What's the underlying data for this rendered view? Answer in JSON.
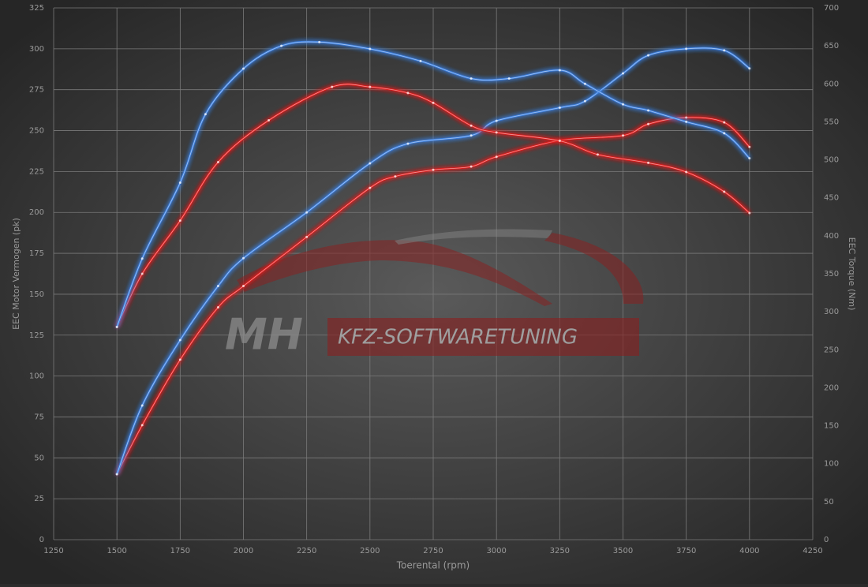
{
  "chart_data": {
    "type": "line",
    "xlabel": "Toerental (rpm)",
    "ylabel": "EEC Motor Vermogen (pk)",
    "y2label": "EEC Torque (Nm)",
    "watermark": {
      "left": "MH",
      "right": "KFZ-SOFTWARETUNING"
    },
    "xlim": [
      1250,
      4250
    ],
    "xticks": [
      1250,
      1500,
      1750,
      2000,
      2250,
      2500,
      2750,
      3000,
      3250,
      3500,
      3750,
      4000,
      4250
    ],
    "ylim": [
      0,
      325
    ],
    "yticks": [
      0,
      25,
      50,
      75,
      100,
      125,
      150,
      175,
      200,
      225,
      250,
      275,
      300,
      325
    ],
    "y2lim": [
      0,
      700
    ],
    "y2ticks": [
      0,
      50,
      100,
      150,
      200,
      250,
      300,
      350,
      400,
      450,
      500,
      550,
      600,
      650,
      700
    ],
    "grid": true,
    "series": [
      {
        "color": "#e01e1e",
        "axis": "y",
        "x": [
          1500,
          1600,
          1750,
          1900,
          2000,
          2250,
          2500,
          2600,
          2750,
          2900,
          3000,
          3250,
          3500,
          3600,
          3750,
          3900,
          4000
        ],
        "values": [
          40,
          70,
          110,
          142,
          155,
          185,
          215,
          222,
          226,
          228,
          234,
          244,
          247,
          254,
          258,
          255,
          240
        ]
      },
      {
        "color": "#3a7fe0",
        "axis": "y",
        "x": [
          1500,
          1600,
          1750,
          1900,
          2000,
          2250,
          2500,
          2650,
          2900,
          3000,
          3250,
          3350,
          3500,
          3600,
          3750,
          3900,
          4000
        ],
        "values": [
          40,
          82,
          122,
          155,
          172,
          200,
          230,
          242,
          247,
          256,
          264,
          268,
          285,
          296,
          300,
          299,
          288
        ]
      },
      {
        "color": "#e01e1e",
        "axis": "y2",
        "x": [
          1500,
          1600,
          1750,
          1900,
          2100,
          2350,
          2500,
          2650,
          2750,
          2900,
          3000,
          3250,
          3400,
          3600,
          3750,
          3900,
          4000
        ],
        "values": [
          280,
          350,
          420,
          497,
          552,
          596,
          596,
          588,
          575,
          545,
          536,
          525,
          507,
          496,
          484,
          458,
          430
        ]
      },
      {
        "color": "#3a7fe0",
        "axis": "y2",
        "x": [
          1500,
          1600,
          1750,
          1850,
          2000,
          2150,
          2300,
          2500,
          2700,
          2900,
          3050,
          3250,
          3350,
          3500,
          3600,
          3750,
          3900,
          4000
        ],
        "values": [
          280,
          370,
          470,
          560,
          620,
          650,
          655,
          646,
          630,
          607,
          607,
          618,
          600,
          573,
          565,
          550,
          535,
          502
        ]
      }
    ]
  }
}
